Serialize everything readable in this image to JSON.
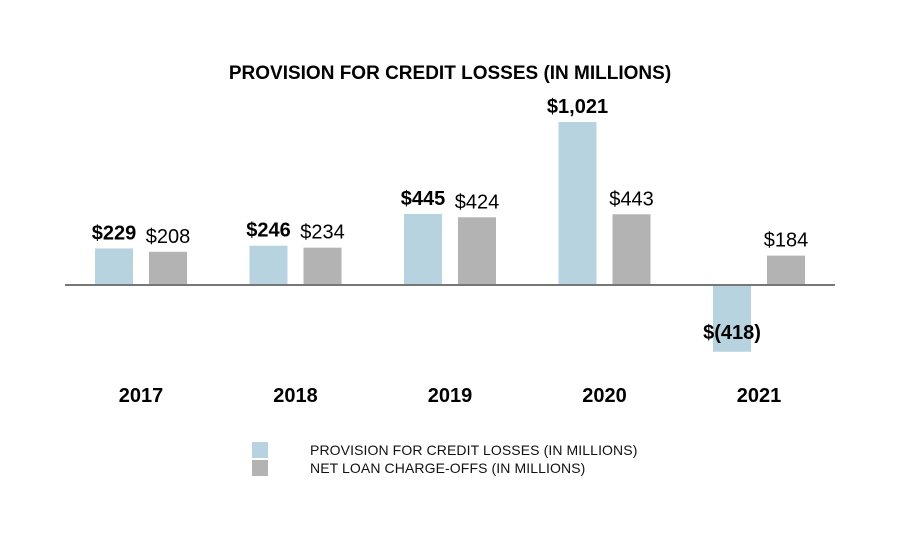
{
  "chart_data": {
    "type": "bar",
    "title": "PROVISION FOR CREDIT LOSSES (IN MILLIONS)",
    "categories": [
      "2017",
      "2018",
      "2019",
      "2020",
      "2021"
    ],
    "series": [
      {
        "name": "PROVISION FOR CREDIT LOSSES (IN MILLIONS)",
        "values": [
          229,
          246,
          445,
          1021,
          -418
        ],
        "labels": [
          "$229",
          "$246",
          "$445",
          "$1,021",
          "$(418)"
        ],
        "color": "#b8d3e0",
        "label_bold": true
      },
      {
        "name": "NET LOAN CHARGE-OFFS (IN MILLIONS)",
        "values": [
          208,
          234,
          424,
          443,
          184
        ],
        "labels": [
          "$208",
          "$234",
          "$424",
          "$443",
          "$184"
        ],
        "color": "#b3b3b3",
        "label_bold": false
      }
    ],
    "xlabel": "",
    "ylabel": "",
    "ylim": [
      -418,
      1021
    ],
    "grid": false,
    "legend_position": "bottom",
    "baseline_color": "#777777"
  }
}
